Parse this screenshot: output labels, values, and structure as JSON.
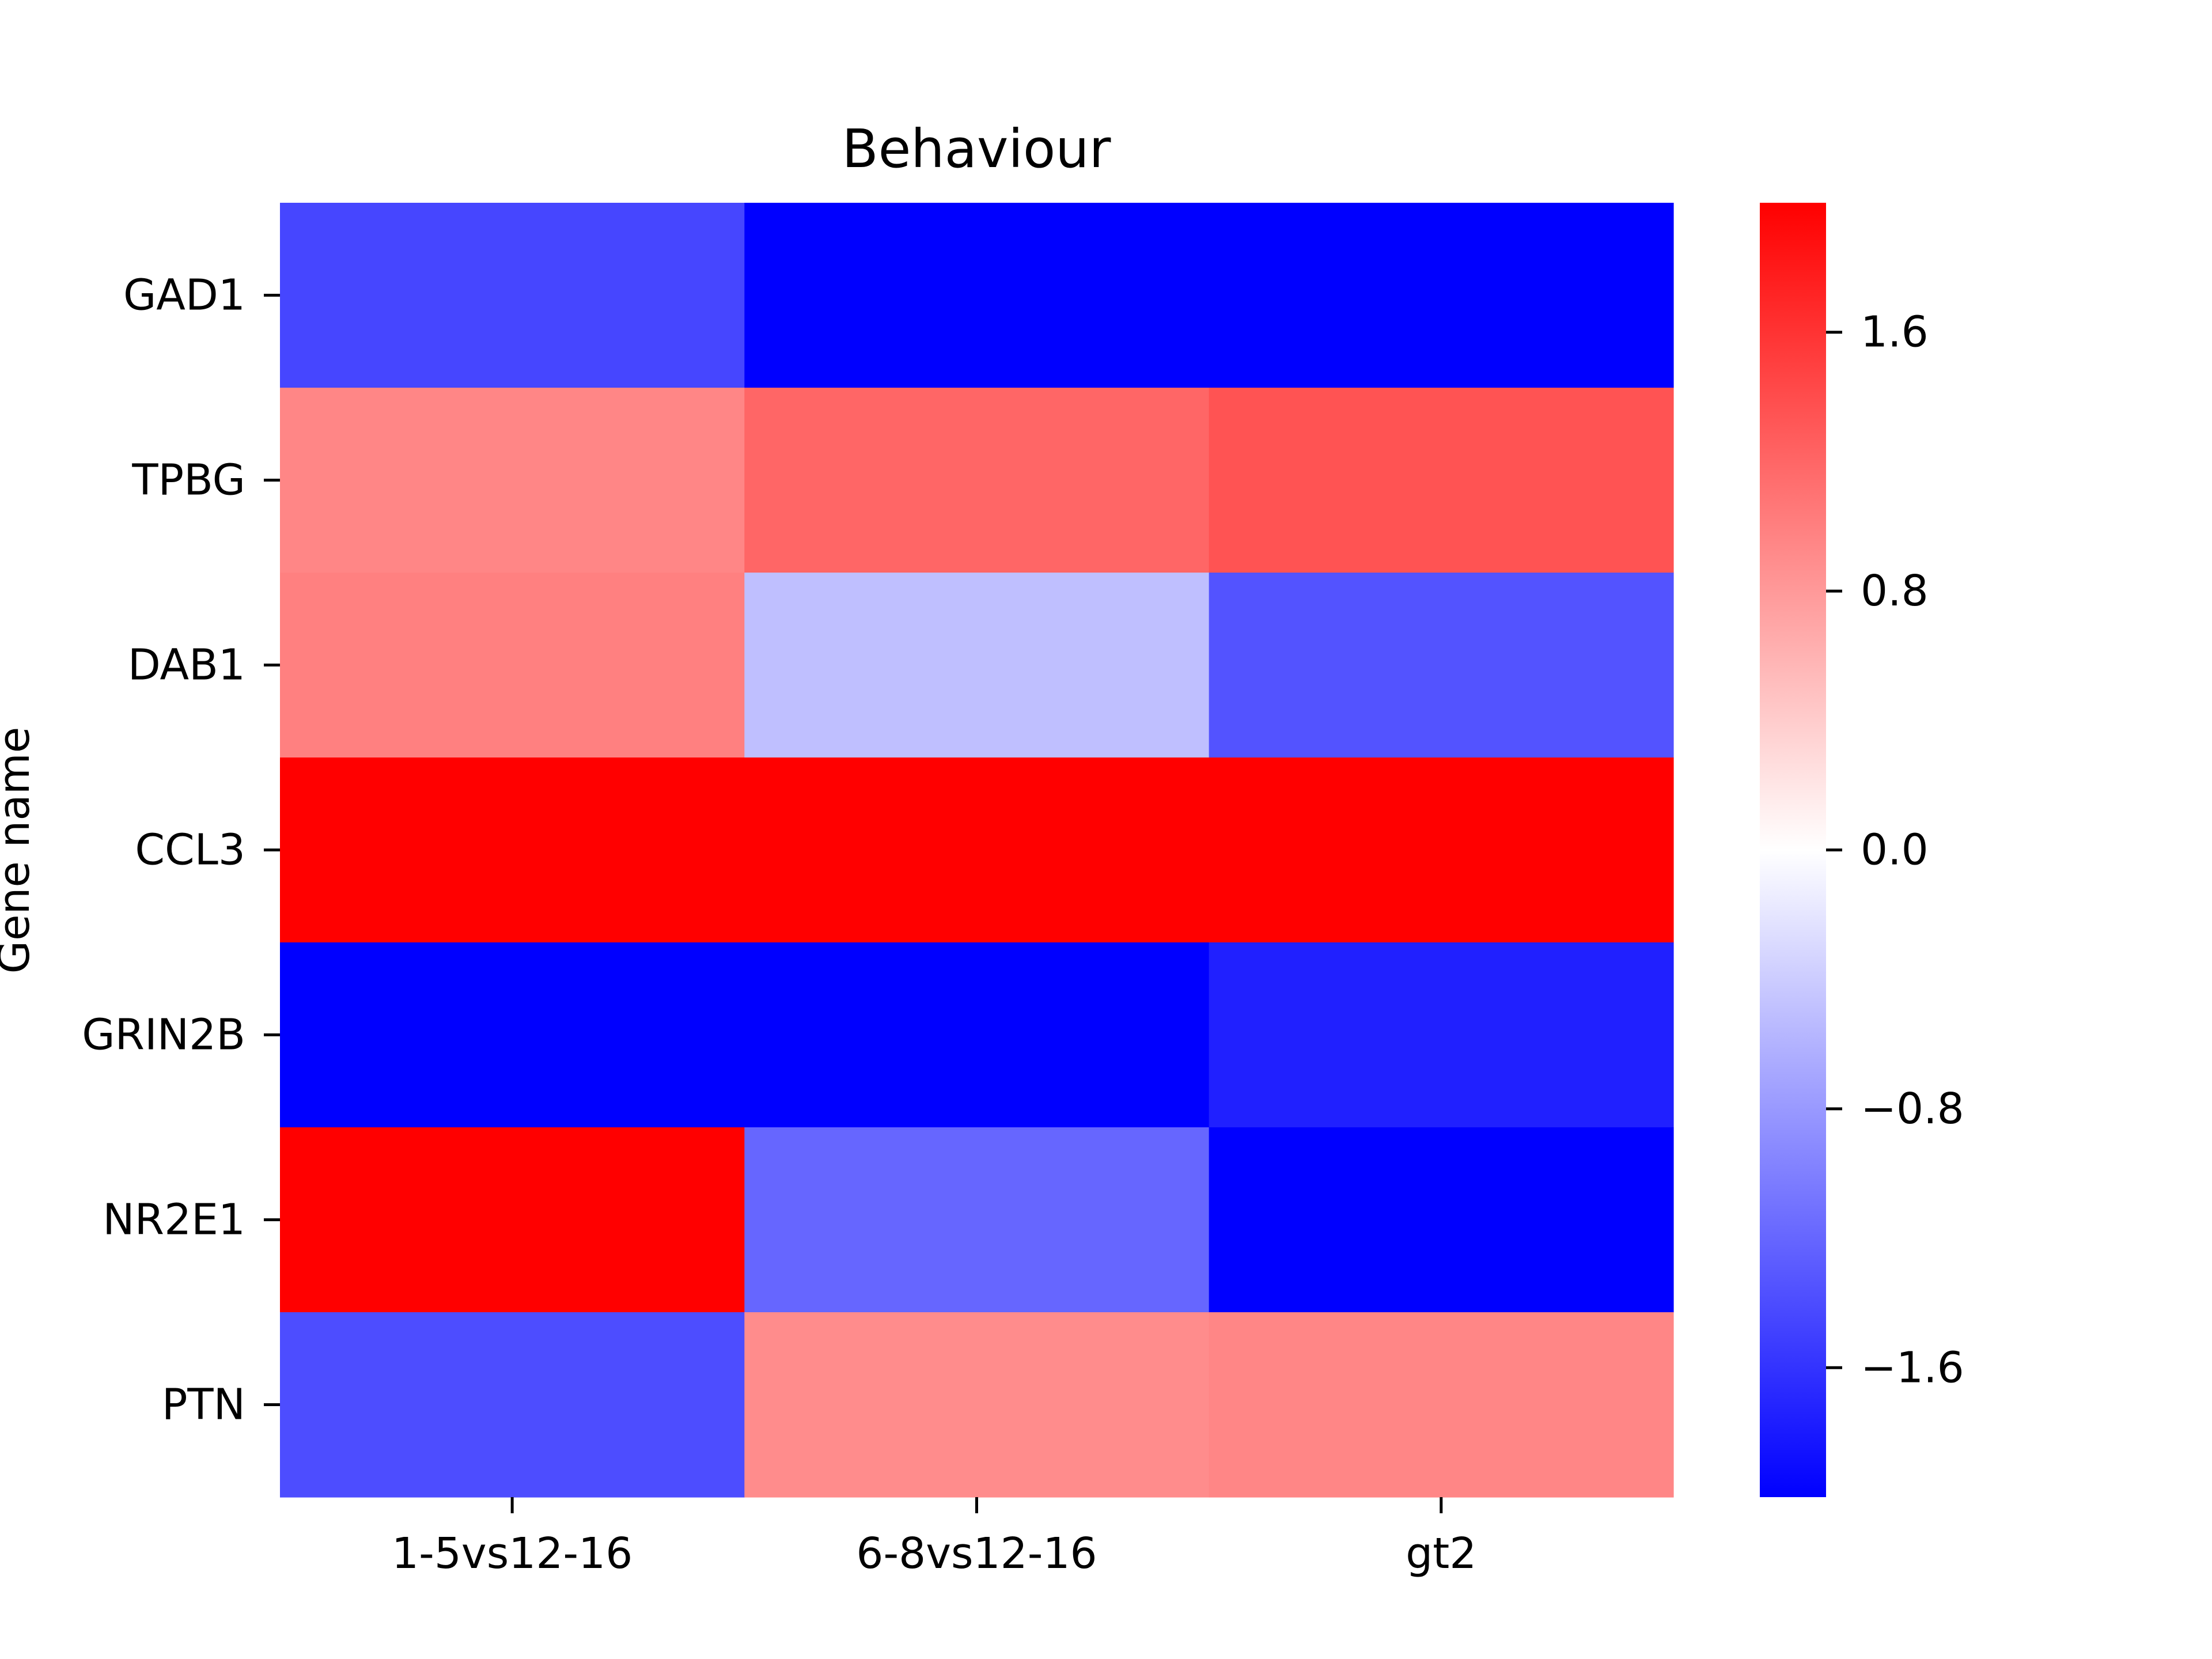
{
  "chart_data": {
    "type": "heatmap",
    "title": "Behaviour",
    "xlabel": "",
    "ylabel": "Gene name",
    "x_categories": [
      "1-5vs12-16",
      "6-8vs12-16",
      "gt2"
    ],
    "y_categories": [
      "GAD1",
      "TPBG",
      "DAB1",
      "CCL3",
      "GRIN2B",
      "NR2E1",
      "PTN"
    ],
    "values": [
      [
        -1.45,
        -2.0,
        -2.0
      ],
      [
        0.95,
        1.2,
        1.35
      ],
      [
        1.0,
        -0.5,
        -1.35
      ],
      [
        2.0,
        2.0,
        2.0
      ],
      [
        -2.0,
        -2.0,
        -1.75
      ],
      [
        2.0,
        -1.2,
        -2.0
      ],
      [
        -1.4,
        0.9,
        0.95
      ]
    ],
    "colorbar": {
      "min": -2.0,
      "max": 2.0,
      "ticks": [
        1.6,
        0.8,
        0.0,
        -0.8,
        -1.6
      ],
      "tick_labels": [
        "1.6",
        "0.8",
        "0.0",
        "−0.8",
        "−1.6"
      ],
      "cmap": "bwr",
      "colors": {
        "low": "#0000ff",
        "mid": "#ffffff",
        "high": "#ff0000"
      }
    }
  }
}
